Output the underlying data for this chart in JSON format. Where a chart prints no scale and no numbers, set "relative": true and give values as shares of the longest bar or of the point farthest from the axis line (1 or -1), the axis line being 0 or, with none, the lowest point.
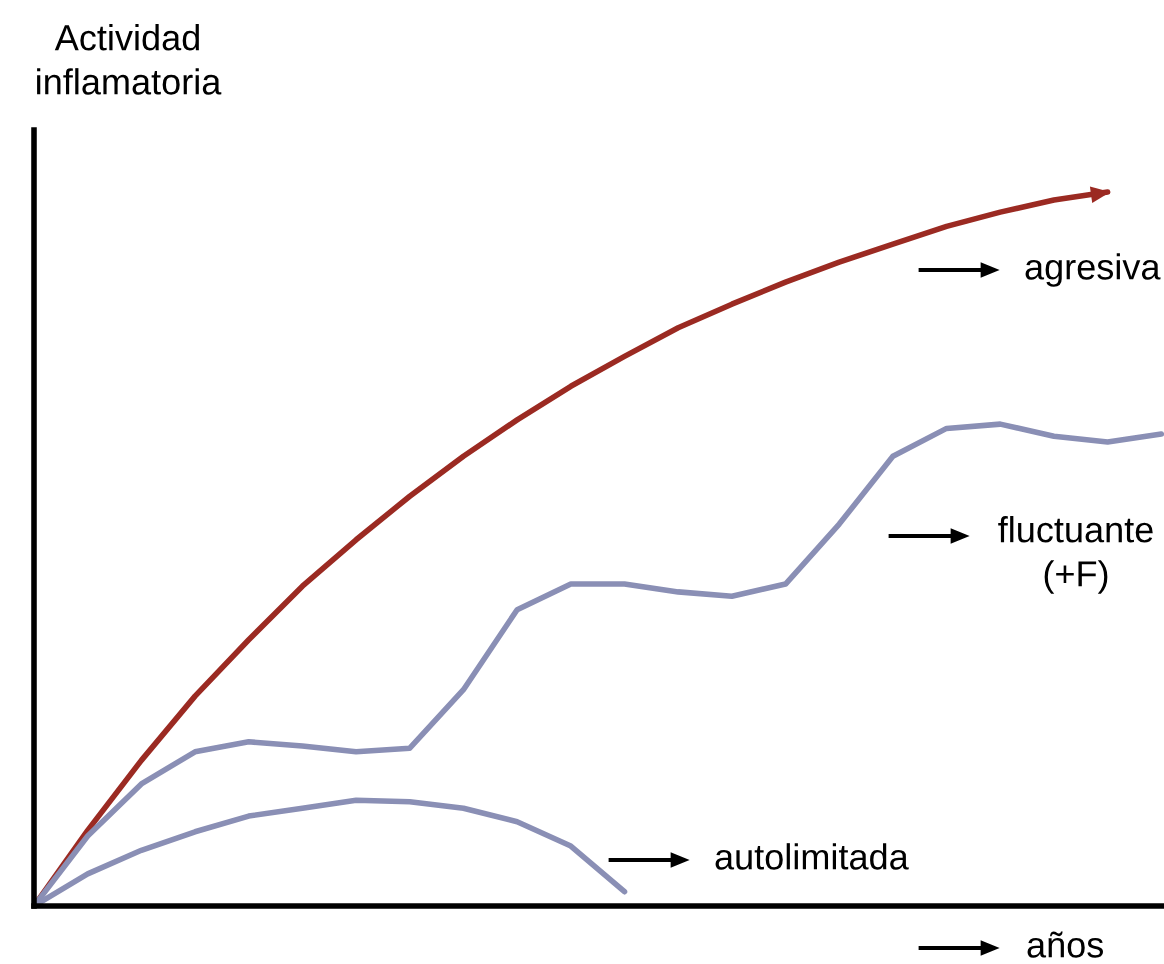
{
  "chart_data": {
    "type": "line",
    "relative": true,
    "ylabel": "Actividad inflamatoria",
    "xlabel": "años",
    "legend": false,
    "marker": "none",
    "line_style": "solid",
    "categories": [
      null,
      null,
      null,
      null,
      null,
      null,
      null,
      null,
      null,
      null,
      null,
      null,
      null,
      null,
      null,
      null,
      null,
      null,
      null,
      null,
      null,
      null
    ],
    "series": [
      {
        "name": "agresiva",
        "color": "#9b2a22",
        "values": [
          0,
          0.106,
          0.204,
          0.294,
          0.373,
          0.448,
          0.513,
          0.574,
          0.63,
          0.681,
          0.728,
          0.77,
          0.81,
          0.843,
          0.874,
          0.902,
          0.927,
          0.952,
          0.972,
          0.989,
          1.0,
          null
        ]
      },
      {
        "name": "fluctuante (+F)",
        "color": "#8a8fb5",
        "values": [
          0,
          0.098,
          0.171,
          0.216,
          0.23,
          0.224,
          0.216,
          0.221,
          0.303,
          0.415,
          0.451,
          0.451,
          0.44,
          0.434,
          0.451,
          0.535,
          0.63,
          0.669,
          0.675,
          0.658,
          0.65,
          0.661
        ]
      },
      {
        "name": "autolimitada",
        "color": "#8a8fb5",
        "values": [
          0,
          0.045,
          0.078,
          0.104,
          0.126,
          0.137,
          0.148,
          0.146,
          0.137,
          0.118,
          0.084,
          0.02,
          null,
          null,
          null,
          null,
          null,
          null,
          null,
          null,
          null,
          null
        ]
      }
    ]
  }
}
